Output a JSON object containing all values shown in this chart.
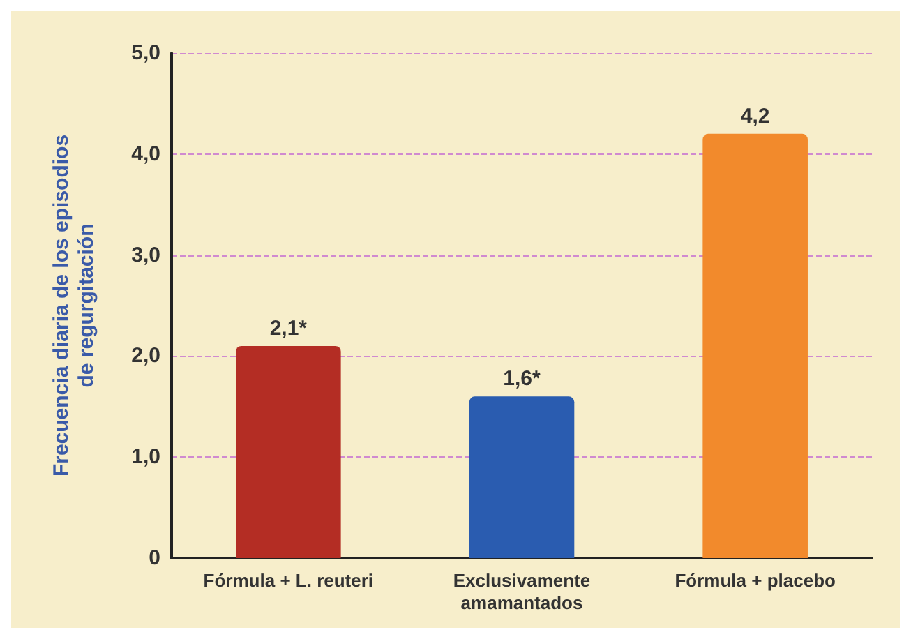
{
  "chart_data": {
    "type": "bar",
    "ylabel": "Frecuencia diaria de los episodios\nde regurgitación",
    "categories": [
      "Fórmula + L. reuteri",
      "Exclusivamente\namamantados",
      "Fórmula + placebo"
    ],
    "values": [
      2.1,
      1.6,
      4.2
    ],
    "colors": [
      "#b42d24",
      "#2a5cb0",
      "#f28a2c"
    ],
    "value_labels": [
      "2,1*",
      "1,6*",
      "4,2"
    ],
    "ylim": [
      0,
      5
    ],
    "yticks": [
      0,
      {
        "value": 1,
        "label": "1,0"
      },
      {
        "value": 2,
        "label": "2,0"
      },
      {
        "value": 3,
        "label": "3,0"
      },
      {
        "value": 4,
        "label": "4,0"
      },
      {
        "value": 5,
        "label": "5,0"
      }
    ],
    "grid": "y"
  }
}
